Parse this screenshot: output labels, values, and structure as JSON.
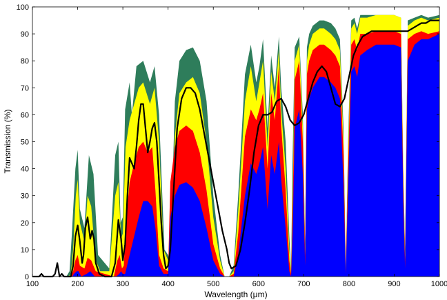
{
  "chart_data": {
    "type": "area",
    "title": "",
    "xlabel": "Wavelength (μm)",
    "ylabel": "Transmission (%)",
    "xlim": [
      100,
      1000
    ],
    "ylim": [
      0,
      100
    ],
    "xticks": [
      100,
      200,
      300,
      400,
      500,
      600,
      700,
      800,
      900,
      1000
    ],
    "yticks": [
      0,
      10,
      20,
      30,
      40,
      50,
      60,
      70,
      80,
      90,
      100
    ],
    "grid": false,
    "legend": "none",
    "colors": {
      "green": "#2e7d5b",
      "yellow": "#ffff00",
      "red": "#ff0000",
      "blue": "#0000ff",
      "line": "#000000"
    },
    "series": [
      {
        "color": "green",
        "x": [
          100,
          175,
          182,
          187,
          195,
          200,
          205,
          215,
          225,
          235,
          245,
          270,
          283,
          290,
          295,
          300,
          305,
          315,
          320,
          330,
          345,
          360,
          370,
          380,
          392,
          400,
          405,
          415,
          425,
          440,
          455,
          470,
          485,
          500,
          515,
          525,
          535,
          545,
          555,
          570,
          583,
          595,
          602,
          610,
          620,
          628,
          636,
          645,
          650,
          660,
          668,
          672,
          675,
          680,
          690,
          698,
          703,
          707,
          712,
          720,
          735,
          745,
          760,
          770,
          780,
          788,
          793,
          798,
          805,
          812,
          818,
          825,
          840,
          860,
          880,
          900,
          915,
          920,
          924,
          930,
          945,
          960,
          975,
          1000
        ],
        "y": [
          0,
          0,
          2,
          15,
          40,
          47,
          25,
          18,
          45,
          38,
          8,
          3,
          45,
          50,
          20,
          22,
          62,
          72,
          60,
          78,
          80,
          72,
          78,
          60,
          10,
          8,
          5,
          65,
          80,
          84,
          85,
          80,
          65,
          30,
          8,
          0,
          0,
          4,
          30,
          75,
          86,
          72,
          78,
          88,
          55,
          82,
          70,
          89,
          70,
          50,
          15,
          3,
          40,
          85,
          89,
          60,
          12,
          85,
          90,
          93,
          95,
          95,
          94,
          92,
          88,
          55,
          3,
          50,
          95,
          96,
          92,
          97,
          97,
          97,
          97,
          97,
          96,
          40,
          10,
          95,
          96,
          97,
          96,
          97
        ]
      },
      {
        "color": "yellow",
        "x": [
          100,
          180,
          185,
          190,
          196,
          200,
          205,
          215,
          222,
          230,
          240,
          250,
          270,
          283,
          290,
          296,
          300,
          306,
          315,
          325,
          335,
          345,
          360,
          370,
          380,
          390,
          400,
          405,
          415,
          425,
          440,
          455,
          470,
          485,
          500,
          515,
          525,
          535,
          545,
          555,
          570,
          583,
          595,
          602,
          610,
          620,
          628,
          636,
          645,
          650,
          660,
          668,
          672,
          676,
          680,
          690,
          698,
          703,
          707,
          712,
          720,
          735,
          745,
          760,
          770,
          780,
          788,
          793,
          798,
          805,
          812,
          818,
          825,
          840,
          860,
          880,
          900,
          915,
          920,
          924,
          930,
          945,
          960,
          975,
          1000
        ],
        "y": [
          0,
          0,
          1,
          10,
          30,
          36,
          20,
          13,
          30,
          26,
          6,
          2,
          2,
          30,
          35,
          14,
          16,
          48,
          58,
          64,
          70,
          72,
          64,
          70,
          50,
          10,
          6,
          4,
          52,
          68,
          72,
          74,
          68,
          50,
          22,
          6,
          0,
          0,
          2,
          24,
          65,
          78,
          65,
          72,
          80,
          48,
          76,
          65,
          84,
          62,
          40,
          10,
          2,
          35,
          80,
          86,
          55,
          10,
          80,
          86,
          90,
          92,
          92,
          90,
          88,
          84,
          50,
          2,
          45,
          92,
          94,
          90,
          96,
          96,
          97,
          97,
          97,
          96,
          38,
          8,
          93,
          95,
          96,
          95,
          96
        ]
      },
      {
        "color": "red",
        "x": [
          100,
          185,
          190,
          195,
          200,
          205,
          215,
          222,
          230,
          240,
          280,
          288,
          293,
          298,
          302,
          308,
          315,
          325,
          335,
          345,
          355,
          365,
          372,
          380,
          390,
          400,
          405,
          415,
          425,
          440,
          455,
          470,
          485,
          500,
          515,
          525,
          535,
          545,
          555,
          570,
          583,
          595,
          602,
          610,
          620,
          628,
          636,
          645,
          650,
          660,
          668,
          672,
          676,
          680,
          690,
          698,
          703,
          707,
          712,
          720,
          735,
          745,
          760,
          770,
          780,
          788,
          793,
          798,
          805,
          812,
          818,
          825,
          840,
          860,
          880,
          900,
          915,
          920,
          924,
          930,
          945,
          960,
          975,
          1000
        ],
        "y": [
          0,
          0,
          2,
          6,
          8,
          4,
          3,
          7,
          6,
          2,
          0,
          6,
          8,
          3,
          4,
          22,
          35,
          42,
          48,
          50,
          46,
          48,
          32,
          8,
          3,
          2,
          35,
          48,
          54,
          56,
          54,
          46,
          32,
          12,
          3,
          0,
          0,
          1,
          16,
          52,
          62,
          58,
          62,
          68,
          40,
          68,
          58,
          78,
          56,
          32,
          6,
          1,
          30,
          73,
          80,
          50,
          8,
          75,
          80,
          84,
          86,
          86,
          84,
          82,
          78,
          45,
          2,
          40,
          86,
          88,
          84,
          90,
          90,
          91,
          91,
          91,
          90,
          34,
          6,
          88,
          90,
          91,
          90,
          91
        ]
      },
      {
        "color": "blue",
        "x": [
          100,
          188,
          192,
          198,
          202,
          208,
          220,
          228,
          238,
          285,
          292,
          296,
          300,
          305,
          315,
          325,
          335,
          345,
          355,
          365,
          372,
          380,
          390,
          400,
          405,
          415,
          425,
          440,
          455,
          470,
          485,
          500,
          515,
          525,
          535,
          545,
          555,
          570,
          583,
          595,
          602,
          610,
          620,
          628,
          636,
          645,
          650,
          660,
          668,
          672,
          676,
          680,
          690,
          698,
          703,
          707,
          712,
          720,
          735,
          745,
          760,
          770,
          780,
          788,
          793,
          798,
          805,
          812,
          818,
          825,
          840,
          860,
          880,
          900,
          915,
          920,
          924,
          930,
          945,
          960,
          975,
          1000
        ],
        "y": [
          0,
          0,
          1,
          2,
          2,
          0,
          1,
          2,
          0,
          0,
          1,
          2,
          1,
          1,
          8,
          15,
          22,
          28,
          28,
          26,
          18,
          4,
          1,
          1,
          22,
          30,
          34,
          35,
          33,
          28,
          18,
          6,
          1,
          0,
          0,
          0,
          8,
          30,
          42,
          38,
          42,
          48,
          25,
          45,
          38,
          50,
          36,
          18,
          2,
          0,
          20,
          55,
          62,
          38,
          4,
          62,
          66,
          70,
          74,
          74,
          72,
          70,
          66,
          34,
          1,
          32,
          76,
          78,
          74,
          82,
          84,
          86,
          86,
          86,
          85,
          28,
          3,
          80,
          86,
          88,
          88,
          90
        ]
      },
      {
        "color": "line",
        "x": [
          100,
          115,
          120,
          125,
          135,
          145,
          150,
          155,
          160,
          165,
          170,
          180,
          185,
          190,
          195,
          200,
          205,
          210,
          213,
          217,
          222,
          225,
          228,
          232,
          236,
          240,
          248,
          260,
          275,
          283,
          290,
          296,
          300,
          305,
          310,
          315,
          320,
          325,
          330,
          335,
          340,
          345,
          350,
          355,
          360,
          365,
          370,
          375,
          380,
          385,
          390,
          395,
          400,
          405,
          410,
          420,
          430,
          440,
          450,
          460,
          470,
          480,
          490,
          500,
          510,
          520,
          530,
          535,
          540,
          550,
          560,
          570,
          580,
          590,
          600,
          610,
          620,
          630,
          640,
          650,
          660,
          670,
          680,
          690,
          700,
          710,
          720,
          730,
          740,
          750,
          760,
          770,
          780,
          790,
          800,
          810,
          820,
          830,
          840,
          850,
          860,
          870,
          880,
          890,
          900,
          910,
          920,
          930,
          940,
          950,
          960,
          970,
          980,
          990,
          1000
        ],
        "y": [
          0,
          0,
          1,
          0,
          0,
          0,
          1,
          5,
          0,
          1,
          0,
          0,
          0,
          4,
          15,
          19,
          13,
          5,
          8,
          18,
          22,
          18,
          14,
          17,
          14,
          5,
          1,
          0,
          0,
          5,
          21,
          14,
          6,
          12,
          30,
          44,
          42,
          40,
          48,
          58,
          64,
          64,
          55,
          46,
          50,
          55,
          57,
          50,
          35,
          20,
          8,
          3,
          4,
          10,
          25,
          55,
          66,
          70,
          70,
          68,
          62,
          53,
          44,
          35,
          26,
          17,
          10,
          5,
          3,
          4,
          10,
          20,
          32,
          46,
          56,
          60,
          60,
          61,
          65,
          66,
          63,
          58,
          56,
          57,
          60,
          66,
          72,
          76,
          78,
          76,
          70,
          64,
          63,
          66,
          74,
          82,
          86,
          89,
          90,
          91,
          91,
          91,
          91,
          91,
          91,
          91,
          91,
          91,
          92,
          93,
          94,
          94,
          95,
          95,
          95
        ]
      }
    ]
  }
}
